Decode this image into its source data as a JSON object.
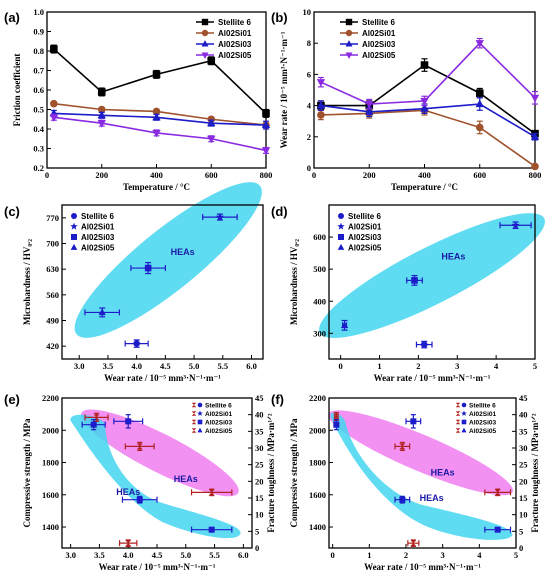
{
  "colors": {
    "stellite6": "#000000",
    "al02si01": "#a0522d",
    "al02si03": "#1c1cc8",
    "al02si05": "#8a2be2",
    "cyan_region": "#44d6f0",
    "pink_region": "#f07ef0",
    "left_axis_red": "#b22222",
    "right_axis_blue": "#1c1cc8"
  },
  "chart_data": [
    {
      "panel": "(a)",
      "type": "line",
      "xlabel": "Temperature / °C",
      "ylabel": "Friction coefficient",
      "xlim": [
        0,
        800
      ],
      "ylim": [
        0.2,
        1.0
      ],
      "xticks": [
        "0",
        "200",
        "400",
        "600",
        "800"
      ],
      "yticks": [
        "0.2",
        "0.3",
        "0.4",
        "0.5",
        "0.6",
        "0.7",
        "0.8",
        "0.9",
        "1.0"
      ],
      "legend_placement": "top-right",
      "series": [
        {
          "name": "Stellite 6",
          "marker": "square",
          "x": [
            25,
            200,
            400,
            600,
            800
          ],
          "y": [
            0.81,
            0.59,
            0.68,
            0.75,
            0.48
          ],
          "err": [
            0.02,
            0.02,
            0.02,
            0.02,
            0.02
          ]
        },
        {
          "name": "Al02Si01",
          "marker": "circle",
          "x": [
            25,
            200,
            400,
            600,
            800
          ],
          "y": [
            0.53,
            0.5,
            0.49,
            0.45,
            0.42
          ],
          "err": [
            0.01,
            0.01,
            0.01,
            0.01,
            0.01
          ]
        },
        {
          "name": "Al02Si03",
          "marker": "triangle-up",
          "x": [
            25,
            200,
            400,
            600,
            800
          ],
          "y": [
            0.48,
            0.47,
            0.46,
            0.43,
            0.42
          ],
          "err": [
            0.015,
            0.015,
            0.015,
            0.015,
            0.02
          ]
        },
        {
          "name": "Al02Si05",
          "marker": "triangle-down",
          "x": [
            25,
            200,
            400,
            600,
            800
          ],
          "y": [
            0.46,
            0.43,
            0.38,
            0.35,
            0.29
          ],
          "err": [
            0.015,
            0.015,
            0.015,
            0.015,
            0.015
          ]
        }
      ]
    },
    {
      "panel": "(b)",
      "type": "line",
      "xlabel": "Temperature / °C",
      "ylabel": "Wear rate / 10⁻⁵ mm³·N⁻¹·m⁻¹",
      "xlim": [
        0,
        800
      ],
      "ylim": [
        0,
        10
      ],
      "xticks": [
        "0",
        "200",
        "400",
        "600",
        "800"
      ],
      "yticks": [
        "0",
        "2",
        "4",
        "6",
        "8",
        "10"
      ],
      "legend_placement": "top-left",
      "series": [
        {
          "name": "Stellite 6",
          "marker": "square",
          "x": [
            25,
            200,
            400,
            600,
            800
          ],
          "y": [
            4.0,
            4.0,
            6.6,
            4.8,
            2.2
          ],
          "err": [
            0.3,
            0.3,
            0.4,
            0.3,
            0.2
          ]
        },
        {
          "name": "Al02Si01",
          "marker": "circle",
          "x": [
            25,
            200,
            400,
            600,
            800
          ],
          "y": [
            3.4,
            3.5,
            3.7,
            2.6,
            0.1
          ],
          "err": [
            0.3,
            0.3,
            0.3,
            0.4,
            0.1
          ]
        },
        {
          "name": "Al02Si03",
          "marker": "triangle-up",
          "x": [
            25,
            200,
            400,
            600,
            800
          ],
          "y": [
            4.0,
            3.6,
            3.8,
            4.1,
            2.0
          ],
          "err": [
            0.3,
            0.3,
            0.3,
            0.4,
            0.2
          ]
        },
        {
          "name": "Al02Si05",
          "marker": "triangle-down",
          "x": [
            25,
            200,
            400,
            600,
            800
          ],
          "y": [
            5.5,
            4.1,
            4.3,
            8.0,
            4.5
          ],
          "err": [
            0.3,
            0.3,
            0.3,
            0.3,
            0.4
          ]
        }
      ]
    },
    {
      "panel": "(c)",
      "type": "scatter",
      "xlabel": "Wear rate / 10⁻⁵ mm³·N⁻¹·m⁻¹",
      "ylabel": "Microhardness / HV₀.₂",
      "xlim": [
        2.7,
        6.2
      ],
      "ylim": [
        385,
        805
      ],
      "xticks": [
        "3.0",
        "3.5",
        "4.0",
        "4.5",
        "5.0",
        "5.5",
        "6.0"
      ],
      "yticks": [
        "420",
        "490",
        "560",
        "630",
        "700",
        "770"
      ],
      "legend_placement": "top-left",
      "region_label": "HEAs",
      "points": [
        {
          "name": "Stellite 6",
          "marker": "circle",
          "x": 4.0,
          "y": 427,
          "xerr": 0.2,
          "yerr": 10
        },
        {
          "name": "Al02Si01",
          "marker": "star",
          "x": 5.45,
          "y": 772,
          "xerr": 0.3,
          "yerr": 8
        },
        {
          "name": "Al02Si03",
          "marker": "square",
          "x": 4.2,
          "y": 633,
          "xerr": 0.3,
          "yerr": 15
        },
        {
          "name": "Al02Si05",
          "marker": "triangle-up",
          "x": 3.4,
          "y": 512,
          "xerr": 0.3,
          "yerr": 12
        }
      ]
    },
    {
      "panel": "(d)",
      "type": "scatter",
      "xlabel": "Wear rate / 10⁻⁵ mm³·N⁻¹·m⁻¹",
      "ylabel": "Microhardness / HV₀.₂",
      "xlim": [
        -0.3,
        5.0
      ],
      "ylim": [
        220,
        700
      ],
      "xticks": [
        "0",
        "1",
        "2",
        "3",
        "4",
        "5"
      ],
      "yticks": [
        "300",
        "400",
        "500",
        "600"
      ],
      "legend_placement": "top-left",
      "region_label": "HEAs",
      "points": [
        {
          "name": "Stellite 6",
          "marker": "circle",
          "x": 2.15,
          "y": 265,
          "xerr": 0.2,
          "yerr": 10
        },
        {
          "name": "Al02Si01",
          "marker": "star",
          "x": 4.5,
          "y": 637,
          "xerr": 0.4,
          "yerr": 10
        },
        {
          "name": "Al02Si03",
          "marker": "square",
          "x": 1.9,
          "y": 465,
          "xerr": 0.2,
          "yerr": 15
        },
        {
          "name": "Al02Si05",
          "marker": "triangle-up",
          "x": 0.1,
          "y": 325,
          "xerr": 0.05,
          "yerr": 15
        }
      ]
    },
    {
      "panel": "(e)",
      "type": "scatter",
      "xlabel": "Wear rate / 10⁻⁵ mm³·N⁻¹·m⁻¹",
      "ylabel_left": "Compressive strength / MPa",
      "ylabel_right": "Fracture toughness / MPa·m¹ᐟ²",
      "xlim": [
        2.85,
        6.15
      ],
      "ylim_left": [
        1270,
        2200
      ],
      "ylim_right": [
        0,
        45
      ],
      "xticks": [
        "3.0",
        "3.5",
        "4.0",
        "4.5",
        "5.0",
        "5.5",
        "6.0"
      ],
      "yticks_left": [
        "1400",
        "1600",
        "1800",
        "2000",
        "2200"
      ],
      "yticks_right": [
        "0",
        "5",
        "10",
        "15",
        "20",
        "25",
        "30",
        "35",
        "40",
        "45"
      ],
      "legend_placement": "top-right",
      "region_labels": [
        "HEAs",
        "HEAs"
      ],
      "compressive_points": [
        {
          "name": "Stellite 6",
          "x": 4.0,
          "y": 1300,
          "xerr": 0.15,
          "yerr": 20
        },
        {
          "name": "Al02Si01",
          "x": 5.45,
          "y": 1615,
          "xerr": 0.35,
          "yerr": 20
        },
        {
          "name": "Al02Si03",
          "x": 4.2,
          "y": 1900,
          "xerr": 0.25,
          "yerr": 25
        },
        {
          "name": "Al02Si05",
          "x": 3.45,
          "y": 2080,
          "xerr": 0.2,
          "yerr": 25
        }
      ],
      "toughness_points": [
        {
          "name": "Stellite 6",
          "x": 4.0,
          "y": 38,
          "xerr": 0.25,
          "yerr": 2
        },
        {
          "name": "Al02Si01",
          "x": 5.45,
          "y": 5.5,
          "xerr": 0.35,
          "yerr": 0.5
        },
        {
          "name": "Al02Si03",
          "x": 4.2,
          "y": 14.5,
          "xerr": 0.3,
          "yerr": 1
        },
        {
          "name": "Al02Si05",
          "x": 3.4,
          "y": 37,
          "xerr": 0.2,
          "yerr": 1.5
        }
      ]
    },
    {
      "panel": "(f)",
      "type": "scatter",
      "xlabel": "Wear rate / 10⁻⁵ mm³·N⁻¹·m⁻¹",
      "ylabel_left": "Compressive strength / MPa",
      "ylabel_right": "Fracture toughness / MPa·m¹ᐟ²",
      "xlim": [
        -0.1,
        5.0
      ],
      "ylim_left": [
        1270,
        2200
      ],
      "ylim_right": [
        0,
        45
      ],
      "xticks": [
        "0",
        "1",
        "2",
        "3",
        "4",
        "5"
      ],
      "yticks_left": [
        "1400",
        "1600",
        "1800",
        "2000",
        "2200"
      ],
      "yticks_right": [
        "0",
        "5",
        "10",
        "15",
        "20",
        "25",
        "30",
        "35",
        "40",
        "45"
      ],
      "legend_placement": "top-right",
      "region_labels": [
        "HEAs",
        "HEAs"
      ],
      "compressive_points": [
        {
          "name": "Stellite 6",
          "x": 2.2,
          "y": 1300,
          "xerr": 0.15,
          "yerr": 20
        },
        {
          "name": "Al02Si01",
          "x": 4.5,
          "y": 1615,
          "xerr": 0.35,
          "yerr": 20
        },
        {
          "name": "Al02Si03",
          "x": 1.9,
          "y": 1900,
          "xerr": 0.2,
          "yerr": 25
        },
        {
          "name": "Al02Si05",
          "x": 0.1,
          "y": 2085,
          "xerr": 0.05,
          "yerr": 25
        }
      ],
      "toughness_points": [
        {
          "name": "Stellite 6",
          "x": 2.2,
          "y": 38,
          "xerr": 0.2,
          "yerr": 2
        },
        {
          "name": "Al02Si01",
          "x": 4.5,
          "y": 5.5,
          "xerr": 0.35,
          "yerr": 0.5
        },
        {
          "name": "Al02Si03",
          "x": 1.9,
          "y": 14.5,
          "xerr": 0.2,
          "yerr": 1
        },
        {
          "name": "Al02Si05",
          "x": 0.1,
          "y": 37,
          "xerr": 0.05,
          "yerr": 1.5
        }
      ]
    }
  ]
}
